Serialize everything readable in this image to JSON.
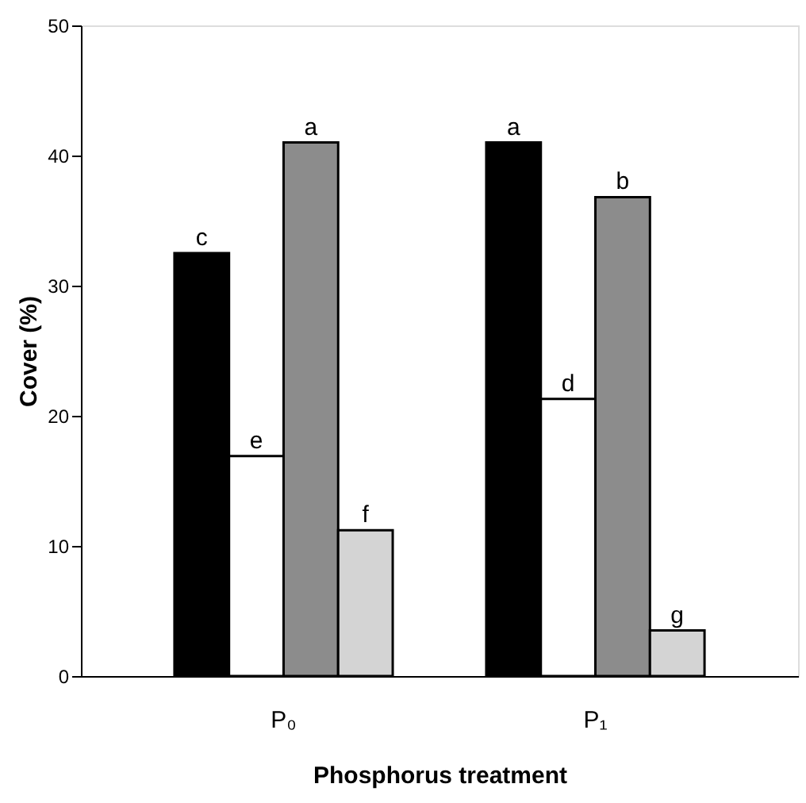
{
  "chart_data": {
    "type": "bar",
    "xlabel": "Phosphorus treatment",
    "ylabel": "Cover (%)",
    "categories": [
      "P₀",
      "P₁"
    ],
    "series": [
      {
        "color": "#000000",
        "values": [
          32.5,
          41.0
        ]
      },
      {
        "color": "#ffffff",
        "values": [
          16.9,
          21.3
        ]
      },
      {
        "color": "#8c8c8c",
        "values": [
          41.0,
          36.8
        ]
      },
      {
        "color": "#d4d4d4",
        "values": [
          11.2,
          3.5
        ]
      }
    ],
    "ylim": [
      0,
      50
    ],
    "yticks": [
      0,
      10,
      20,
      30,
      40,
      50
    ],
    "grid": false,
    "legend": false,
    "annotations": [
      "c",
      "e",
      "a",
      "f",
      "a",
      "d",
      "b",
      "g"
    ]
  }
}
